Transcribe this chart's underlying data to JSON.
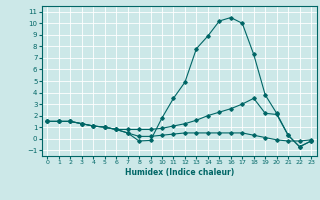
{
  "xlabel": "Humidex (Indice chaleur)",
  "ylabel": "",
  "bg_color": "#cce8e8",
  "grid_color": "#ffffff",
  "line_color": "#006666",
  "xlim": [
    -0.5,
    23.5
  ],
  "ylim": [
    -1.5,
    11.5
  ],
  "xticks": [
    0,
    1,
    2,
    3,
    4,
    5,
    6,
    7,
    8,
    9,
    10,
    11,
    12,
    13,
    14,
    15,
    16,
    17,
    18,
    19,
    20,
    21,
    22,
    23
  ],
  "yticks": [
    -1,
    0,
    1,
    2,
    3,
    4,
    5,
    6,
    7,
    8,
    9,
    10,
    11
  ],
  "line1_x": [
    0,
    1,
    2,
    3,
    4,
    5,
    6,
    7,
    8,
    9,
    10,
    11,
    12,
    13,
    14,
    15,
    16,
    17,
    18,
    19,
    20,
    21,
    22,
    23
  ],
  "line1_y": [
    1.5,
    1.5,
    1.5,
    1.3,
    1.1,
    1.0,
    0.8,
    0.5,
    -0.2,
    -0.15,
    1.8,
    3.5,
    4.9,
    7.8,
    8.9,
    10.2,
    10.5,
    10.0,
    7.3,
    3.8,
    2.2,
    0.3,
    -0.7,
    -0.2
  ],
  "line2_x": [
    0,
    1,
    2,
    3,
    4,
    5,
    6,
    7,
    8,
    9,
    10,
    11,
    12,
    13,
    14,
    15,
    16,
    17,
    18,
    19,
    20,
    21,
    22,
    23
  ],
  "line2_y": [
    1.5,
    1.5,
    1.5,
    1.3,
    1.1,
    1.0,
    0.8,
    0.8,
    0.8,
    0.8,
    0.9,
    1.1,
    1.3,
    1.6,
    2.0,
    2.3,
    2.6,
    3.0,
    3.5,
    2.2,
    2.1,
    0.3,
    -0.7,
    -0.2
  ],
  "line3_x": [
    0,
    1,
    2,
    3,
    4,
    5,
    6,
    7,
    8,
    9,
    10,
    11,
    12,
    13,
    14,
    15,
    16,
    17,
    18,
    19,
    20,
    21,
    22,
    23
  ],
  "line3_y": [
    1.5,
    1.5,
    1.5,
    1.3,
    1.1,
    1.0,
    0.8,
    0.5,
    0.2,
    0.2,
    0.3,
    0.4,
    0.5,
    0.5,
    0.5,
    0.5,
    0.5,
    0.5,
    0.3,
    0.1,
    -0.1,
    -0.2,
    -0.2,
    -0.1
  ]
}
